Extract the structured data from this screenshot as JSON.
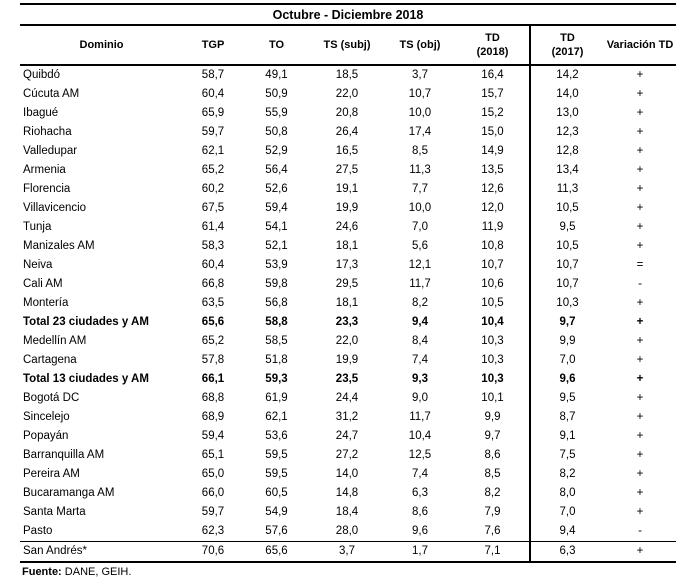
{
  "title": "Octubre - Diciembre 2018",
  "table": {
    "columns": [
      {
        "label": "Dominio"
      },
      {
        "label": "TGP"
      },
      {
        "label": "TO"
      },
      {
        "label": "TS (subj)"
      },
      {
        "label": "TS (obj)"
      },
      {
        "label": "TD\n(2018)"
      },
      {
        "label": "TD\n(2017)"
      },
      {
        "label": "Variación TD"
      }
    ],
    "rows": [
      {
        "dominio": "Quibdó",
        "values": [
          "58,7",
          "49,1",
          "18,5",
          "3,7",
          "16,4",
          "14,2",
          "+"
        ],
        "bold": false,
        "separator": false
      },
      {
        "dominio": "Cúcuta AM",
        "values": [
          "60,4",
          "50,9",
          "22,0",
          "10,7",
          "15,7",
          "14,0",
          "+"
        ],
        "bold": false,
        "separator": false
      },
      {
        "dominio": "Ibagué",
        "values": [
          "65,9",
          "55,9",
          "20,8",
          "10,0",
          "15,2",
          "13,0",
          "+"
        ],
        "bold": false,
        "separator": false
      },
      {
        "dominio": "Riohacha",
        "values": [
          "59,7",
          "50,8",
          "26,4",
          "17,4",
          "15,0",
          "12,3",
          "+"
        ],
        "bold": false,
        "separator": false
      },
      {
        "dominio": "Valledupar",
        "values": [
          "62,1",
          "52,9",
          "16,5",
          "8,5",
          "14,9",
          "12,8",
          "+"
        ],
        "bold": false,
        "separator": false
      },
      {
        "dominio": "Armenia",
        "values": [
          "65,2",
          "56,4",
          "27,5",
          "11,3",
          "13,5",
          "13,4",
          "+"
        ],
        "bold": false,
        "separator": false
      },
      {
        "dominio": "Florencia",
        "values": [
          "60,2",
          "52,6",
          "19,1",
          "7,7",
          "12,6",
          "11,3",
          "+"
        ],
        "bold": false,
        "separator": false
      },
      {
        "dominio": "Villavicencio",
        "values": [
          "67,5",
          "59,4",
          "19,9",
          "10,0",
          "12,0",
          "10,5",
          "+"
        ],
        "bold": false,
        "separator": false
      },
      {
        "dominio": "Tunja",
        "values": [
          "61,4",
          "54,1",
          "24,6",
          "7,0",
          "11,9",
          "9,5",
          "+"
        ],
        "bold": false,
        "separator": false
      },
      {
        "dominio": "Manizales AM",
        "values": [
          "58,3",
          "52,1",
          "18,1",
          "5,6",
          "10,8",
          "10,5",
          "+"
        ],
        "bold": false,
        "separator": false
      },
      {
        "dominio": "Neiva",
        "values": [
          "60,4",
          "53,9",
          "17,3",
          "12,1",
          "10,7",
          "10,7",
          "="
        ],
        "bold": false,
        "separator": false
      },
      {
        "dominio": "Cali AM",
        "values": [
          "66,8",
          "59,8",
          "29,5",
          "11,7",
          "10,6",
          "10,7",
          "-"
        ],
        "bold": false,
        "separator": false
      },
      {
        "dominio": "Montería",
        "values": [
          "63,5",
          "56,8",
          "18,1",
          "8,2",
          "10,5",
          "10,3",
          "+"
        ],
        "bold": false,
        "separator": false
      },
      {
        "dominio": "Total 23 ciudades y AM",
        "values": [
          "65,6",
          "58,8",
          "23,3",
          "9,4",
          "10,4",
          "9,7",
          "+"
        ],
        "bold": true,
        "separator": false
      },
      {
        "dominio": "Medellín AM",
        "values": [
          "65,2",
          "58,5",
          "22,0",
          "8,4",
          "10,3",
          "9,9",
          "+"
        ],
        "bold": false,
        "separator": false
      },
      {
        "dominio": "Cartagena",
        "values": [
          "57,8",
          "51,8",
          "19,9",
          "7,4",
          "10,3",
          "7,0",
          "+"
        ],
        "bold": false,
        "separator": false
      },
      {
        "dominio": "Total 13 ciudades y AM",
        "values": [
          "66,1",
          "59,3",
          "23,5",
          "9,3",
          "10,3",
          "9,6",
          "+"
        ],
        "bold": true,
        "separator": false
      },
      {
        "dominio": "Bogotá DC",
        "values": [
          "68,8",
          "61,9",
          "24,4",
          "9,0",
          "10,1",
          "9,5",
          "+"
        ],
        "bold": false,
        "separator": false
      },
      {
        "dominio": "Sincelejo",
        "values": [
          "68,9",
          "62,1",
          "31,2",
          "11,7",
          "9,9",
          "8,7",
          "+"
        ],
        "bold": false,
        "separator": false
      },
      {
        "dominio": "Popayán",
        "values": [
          "59,4",
          "53,6",
          "24,7",
          "10,4",
          "9,7",
          "9,1",
          "+"
        ],
        "bold": false,
        "separator": false
      },
      {
        "dominio": "Barranquilla AM",
        "values": [
          "65,1",
          "59,5",
          "27,2",
          "12,5",
          "8,6",
          "7,5",
          "+"
        ],
        "bold": false,
        "separator": false
      },
      {
        "dominio": "Pereira AM",
        "values": [
          "65,0",
          "59,5",
          "14,0",
          "7,4",
          "8,5",
          "8,2",
          "+"
        ],
        "bold": false,
        "separator": false
      },
      {
        "dominio": "Bucaramanga AM",
        "values": [
          "66,0",
          "60,5",
          "14,8",
          "6,3",
          "8,2",
          "8,0",
          "+"
        ],
        "bold": false,
        "separator": false
      },
      {
        "dominio": "Santa Marta",
        "values": [
          "59,7",
          "54,9",
          "18,4",
          "8,6",
          "7,9",
          "7,0",
          "+"
        ],
        "bold": false,
        "separator": false
      },
      {
        "dominio": "Pasto",
        "values": [
          "62,3",
          "57,6",
          "28,0",
          "9,6",
          "7,6",
          "9,4",
          "-"
        ],
        "bold": false,
        "separator": false
      },
      {
        "dominio": "San Andrés*",
        "values": [
          "70,6",
          "65,6",
          "3,7",
          "1,7",
          "7,1",
          "6,3",
          "+"
        ],
        "bold": false,
        "separator": true
      }
    ]
  },
  "footer": {
    "fuente_label": "Fuente:",
    "fuente_text": " DANE, GEIH."
  }
}
